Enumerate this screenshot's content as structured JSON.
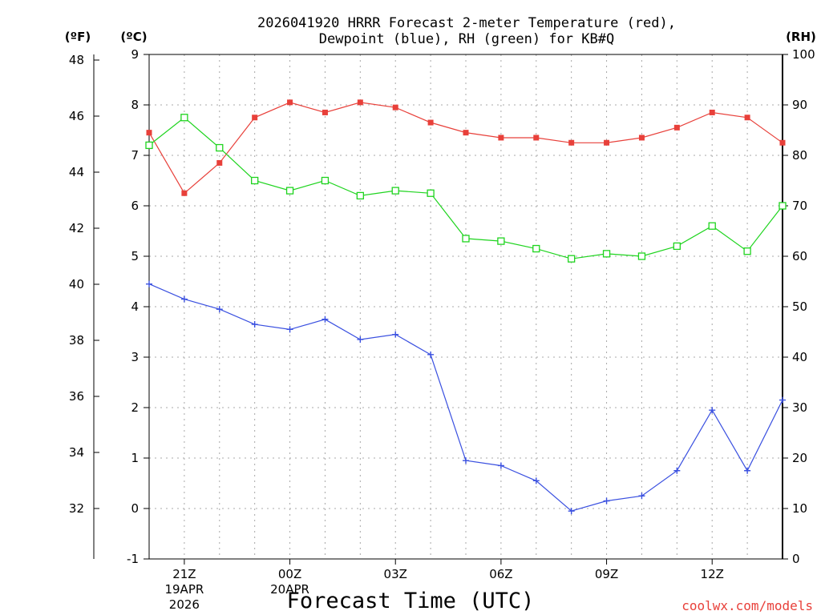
{
  "chart_data": {
    "type": "line",
    "title_line1": "2026041920 HRRR Forecast 2-meter Temperature (red),",
    "title_line2": "Dewpoint (blue), RH (green) for KB#Q",
    "xlabel": "Forecast Time (UTC)",
    "credit": "coolwx.com/models",
    "units": {
      "f": "(ºF)",
      "c": "(ºC)",
      "rh": "(RH)"
    },
    "hours": [
      20,
      21,
      22,
      23,
      24,
      25,
      26,
      27,
      28,
      29,
      30,
      31,
      32,
      33,
      34,
      35,
      36,
      37,
      38
    ],
    "x_ticks": [
      {
        "hour": 21,
        "label": "21Z",
        "sub1": "19APR",
        "sub2": "2026"
      },
      {
        "hour": 24,
        "label": "00Z",
        "sub1": "20APR",
        "sub2": ""
      },
      {
        "hour": 27,
        "label": "03Z",
        "sub1": "",
        "sub2": ""
      },
      {
        "hour": 30,
        "label": "06Z",
        "sub1": "",
        "sub2": ""
      },
      {
        "hour": 33,
        "label": "09Z",
        "sub1": "",
        "sub2": ""
      },
      {
        "hour": 36,
        "label": "12Z",
        "sub1": "",
        "sub2": ""
      }
    ],
    "c_axis": {
      "range": [
        -1,
        9
      ],
      "ticks": [
        "-1",
        "0",
        "1",
        "2",
        "3",
        "4",
        "5",
        "6",
        "7",
        "8",
        "9"
      ]
    },
    "f_axis": {
      "range": [
        30.2,
        48.2
      ],
      "ticks": [
        "32",
        "34",
        "36",
        "38",
        "40",
        "42",
        "44",
        "46",
        "48"
      ]
    },
    "rh_axis": {
      "range": [
        0,
        100
      ],
      "ticks": [
        "0",
        "10",
        "20",
        "30",
        "40",
        "50",
        "60",
        "70",
        "80",
        "90",
        "100"
      ]
    },
    "series": [
      {
        "name": "2-meter Temperature",
        "unit": "C",
        "color": "#e8403a",
        "marker": "filled-square",
        "values": [
          7.45,
          6.25,
          6.85,
          7.75,
          8.05,
          7.85,
          8.05,
          7.95,
          7.65,
          7.45,
          7.35,
          7.35,
          7.25,
          7.25,
          7.35,
          7.55,
          7.85,
          7.75,
          7.25
        ]
      },
      {
        "name": "Dewpoint",
        "unit": "C",
        "color": "#3a50e0",
        "marker": "plus",
        "values": [
          4.45,
          4.15,
          3.95,
          3.65,
          3.55,
          3.75,
          3.35,
          3.45,
          3.05,
          0.95,
          0.85,
          0.55,
          -0.05,
          0.15,
          0.25,
          0.75,
          1.95,
          0.75,
          2.15
        ]
      },
      {
        "name": "RH",
        "unit": "%",
        "color": "#1ed41e",
        "marker": "open-square",
        "values": [
          82,
          87.5,
          81.5,
          75,
          73,
          75,
          72,
          73,
          72.5,
          63.5,
          63,
          61.5,
          59.5,
          60.5,
          60,
          62,
          66,
          61,
          70
        ]
      }
    ]
  }
}
